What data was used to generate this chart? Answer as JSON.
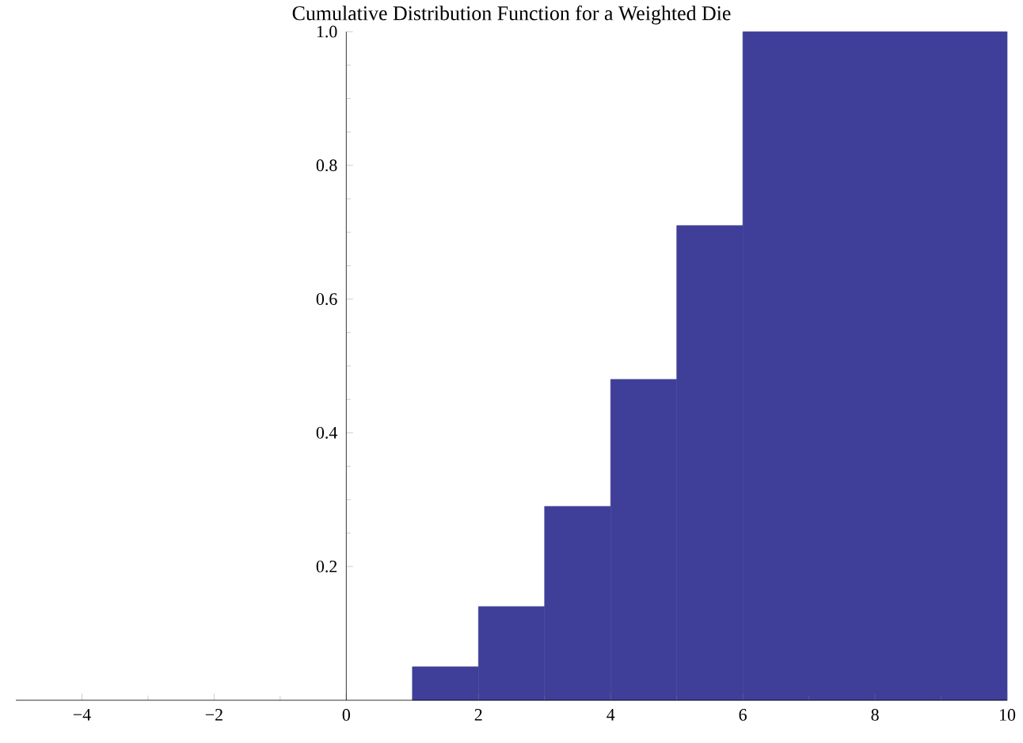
{
  "chart_data": {
    "type": "histogram",
    "title": "Cumulative Distribution Function for a Weighted Die",
    "bins": [
      1,
      2,
      3,
      4,
      5,
      6,
      10
    ],
    "values": [
      0.05,
      0.14,
      0.29,
      0.48,
      0.71,
      1.0
    ],
    "color": "#3f3f99",
    "xlim": [
      -5,
      10
    ],
    "ylim": [
      0,
      1
    ],
    "xticks": [
      {
        "value": -4,
        "label": "−4"
      },
      {
        "value": -2,
        "label": "−2"
      },
      0,
      2,
      4,
      6,
      8,
      10
    ],
    "yticks": [
      0.2,
      0.4,
      0.6,
      0.8,
      {
        "value": 1,
        "label": "1.0"
      }
    ],
    "grid": false
  }
}
